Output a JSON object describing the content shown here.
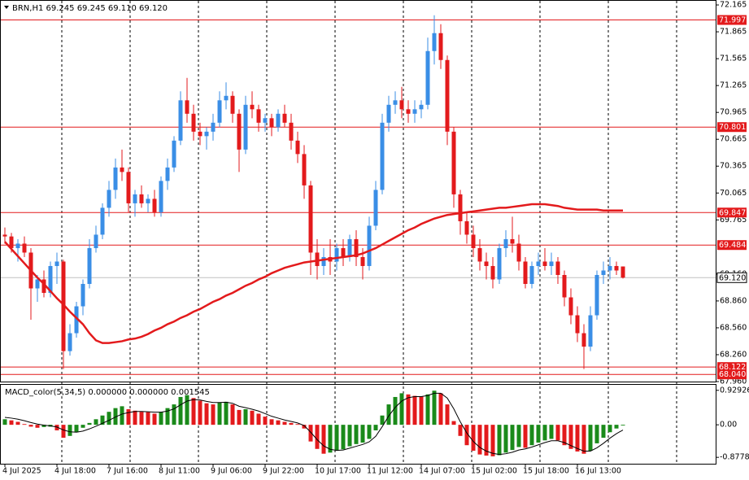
{
  "chart_data": {
    "type": "candlestick",
    "title": "BRN,H1  69.245 69.245 69.110 69.120",
    "categories": [
      "4 Jul 2025",
      null,
      null,
      null,
      null,
      null,
      null,
      null,
      "4 Jul 18:00",
      null,
      null,
      null,
      null,
      null,
      null,
      null,
      "7 Jul 16:00",
      null,
      null,
      null,
      null,
      null,
      null,
      null,
      "8 Jul 11:00",
      null,
      null,
      null,
      null,
      null,
      null,
      null,
      "9 Jul 06:00",
      null,
      null,
      null,
      null,
      null,
      null,
      null,
      "9 Jul 22:00",
      null,
      null,
      null,
      null,
      null,
      null,
      null,
      "10 Jul 17:00",
      null,
      null,
      null,
      null,
      null,
      null,
      null,
      "11 Jul 12:00",
      null,
      null,
      null,
      null,
      null,
      null,
      null,
      "14 Jul 07:00",
      null,
      null,
      null,
      null,
      null,
      null,
      null,
      "15 Jul 02:00",
      null,
      null,
      null,
      null,
      null,
      null,
      null,
      "15 Jul 18:00",
      null,
      null,
      null,
      null,
      null,
      null,
      null,
      "16 Jul 13:00",
      null,
      null,
      null,
      null,
      null,
      null,
      null
    ],
    "candles": [
      [
        69.6,
        69.68,
        69.5,
        69.58
      ],
      [
        69.58,
        69.62,
        69.4,
        69.45
      ],
      [
        69.45,
        69.55,
        69.3,
        69.5
      ],
      [
        69.5,
        69.58,
        69.35,
        69.4
      ],
      [
        69.4,
        69.45,
        68.65,
        69.0
      ],
      [
        69.0,
        69.15,
        68.85,
        69.1
      ],
      [
        69.1,
        69.2,
        68.9,
        68.95
      ],
      [
        68.95,
        69.3,
        68.9,
        69.25
      ],
      [
        69.25,
        69.4,
        69.05,
        69.3
      ],
      [
        69.3,
        69.32,
        68.1,
        68.3
      ],
      [
        68.3,
        68.6,
        68.25,
        68.5
      ],
      [
        68.5,
        68.85,
        68.45,
        68.8
      ],
      [
        68.8,
        69.1,
        68.7,
        69.05
      ],
      [
        69.05,
        69.55,
        69.0,
        69.45
      ],
      [
        69.45,
        69.7,
        69.4,
        69.6
      ],
      [
        69.6,
        69.95,
        69.55,
        69.9
      ],
      [
        69.9,
        70.2,
        69.8,
        70.1
      ],
      [
        70.1,
        70.45,
        70.0,
        70.35
      ],
      [
        70.35,
        70.55,
        70.2,
        70.3
      ],
      [
        70.3,
        70.35,
        69.85,
        69.95
      ],
      [
        69.95,
        70.1,
        69.8,
        70.05
      ],
      [
        70.05,
        70.15,
        69.9,
        69.95
      ],
      [
        69.95,
        70.05,
        69.85,
        70.0
      ],
      [
        70.0,
        70.1,
        69.8,
        69.85
      ],
      [
        69.85,
        70.25,
        69.8,
        70.2
      ],
      [
        70.2,
        70.45,
        70.1,
        70.35
      ],
      [
        70.35,
        70.7,
        70.3,
        70.65
      ],
      [
        70.65,
        71.2,
        70.6,
        71.1
      ],
      [
        71.1,
        71.35,
        70.85,
        70.95
      ],
      [
        70.95,
        71.05,
        70.65,
        70.75
      ],
      [
        70.75,
        70.85,
        70.6,
        70.7
      ],
      [
        70.7,
        70.8,
        70.55,
        70.75
      ],
      [
        70.75,
        70.95,
        70.65,
        70.85
      ],
      [
        70.85,
        71.2,
        70.8,
        71.1
      ],
      [
        71.1,
        71.3,
        71.0,
        71.15
      ],
      [
        71.15,
        71.2,
        70.85,
        70.95
      ],
      [
        70.95,
        71.0,
        70.3,
        70.55
      ],
      [
        70.55,
        71.15,
        70.5,
        71.05
      ],
      [
        71.05,
        71.2,
        70.9,
        71.0
      ],
      [
        71.0,
        71.05,
        70.75,
        70.85
      ],
      [
        70.85,
        70.95,
        70.75,
        70.9
      ],
      [
        70.9,
        70.95,
        70.7,
        70.8
      ],
      [
        70.8,
        71.0,
        70.75,
        70.95
      ],
      [
        70.95,
        71.05,
        70.8,
        70.85
      ],
      [
        70.85,
        70.95,
        70.55,
        70.65
      ],
      [
        70.65,
        70.75,
        70.4,
        70.5
      ],
      [
        70.5,
        70.6,
        70.0,
        70.15
      ],
      [
        70.15,
        70.2,
        69.15,
        69.4
      ],
      [
        69.4,
        69.55,
        69.1,
        69.25
      ],
      [
        69.25,
        69.45,
        69.15,
        69.35
      ],
      [
        69.35,
        69.55,
        69.15,
        69.3
      ],
      [
        69.3,
        69.5,
        69.2,
        69.45
      ],
      [
        69.45,
        69.55,
        69.25,
        69.35
      ],
      [
        69.35,
        69.6,
        69.3,
        69.55
      ],
      [
        69.55,
        69.65,
        69.25,
        69.35
      ],
      [
        69.35,
        69.45,
        69.1,
        69.25
      ],
      [
        69.25,
        69.8,
        69.2,
        69.7
      ],
      [
        69.7,
        70.2,
        69.65,
        70.1
      ],
      [
        70.1,
        70.95,
        70.05,
        70.85
      ],
      [
        70.85,
        71.15,
        70.75,
        71.05
      ],
      [
        71.05,
        71.2,
        70.95,
        71.1
      ],
      [
        71.1,
        71.25,
        70.9,
        71.0
      ],
      [
        71.0,
        71.1,
        70.85,
        70.95
      ],
      [
        70.95,
        71.1,
        70.85,
        71.0
      ],
      [
        71.0,
        71.1,
        70.9,
        71.05
      ],
      [
        71.05,
        71.8,
        71.0,
        71.65
      ],
      [
        71.65,
        72.05,
        71.5,
        71.85
      ],
      [
        71.85,
        71.95,
        71.45,
        71.55
      ],
      [
        71.55,
        71.6,
        70.6,
        70.75
      ],
      [
        70.75,
        70.8,
        69.9,
        70.05
      ],
      [
        70.05,
        70.1,
        69.6,
        69.75
      ],
      [
        69.75,
        69.85,
        69.5,
        69.6
      ],
      [
        69.6,
        69.7,
        69.35,
        69.45
      ],
      [
        69.45,
        69.55,
        69.2,
        69.3
      ],
      [
        69.3,
        69.4,
        69.1,
        69.25
      ],
      [
        69.25,
        69.35,
        69.0,
        69.1
      ],
      [
        69.1,
        69.5,
        69.05,
        69.45
      ],
      [
        69.45,
        69.65,
        69.35,
        69.55
      ],
      [
        69.55,
        69.8,
        69.4,
        69.5
      ],
      [
        69.5,
        69.6,
        69.2,
        69.3
      ],
      [
        69.3,
        69.35,
        69.0,
        69.05
      ],
      [
        69.05,
        69.3,
        69.0,
        69.25
      ],
      [
        69.25,
        69.4,
        69.15,
        69.3
      ],
      [
        69.3,
        69.45,
        69.2,
        69.25
      ],
      [
        69.25,
        69.4,
        69.15,
        69.3
      ],
      [
        69.3,
        69.35,
        69.05,
        69.15
      ],
      [
        69.15,
        69.2,
        68.8,
        68.9
      ],
      [
        68.9,
        69.0,
        68.6,
        68.7
      ],
      [
        68.7,
        68.8,
        68.4,
        68.5
      ],
      [
        68.5,
        68.6,
        68.1,
        68.35
      ],
      [
        68.35,
        68.8,
        68.3,
        68.7
      ],
      [
        68.7,
        69.2,
        68.65,
        69.15
      ],
      [
        69.15,
        69.3,
        69.05,
        69.2
      ],
      [
        69.2,
        69.35,
        69.1,
        69.25
      ],
      [
        69.25,
        69.3,
        69.15,
        69.2
      ],
      [
        69.245,
        69.245,
        69.11,
        69.12
      ]
    ],
    "ma_values": [
      69.52,
      69.44,
      69.36,
      69.28,
      69.2,
      69.12,
      69.05,
      68.97,
      68.89,
      68.82,
      68.74,
      68.67,
      68.6,
      68.5,
      68.42,
      68.39,
      68.39,
      68.4,
      68.41,
      68.43,
      68.44,
      68.46,
      68.49,
      68.53,
      68.56,
      68.6,
      68.63,
      68.67,
      68.7,
      68.74,
      68.77,
      68.81,
      68.85,
      68.88,
      68.92,
      68.95,
      68.99,
      69.03,
      69.06,
      69.1,
      69.13,
      69.17,
      69.2,
      69.23,
      69.25,
      69.27,
      69.29,
      69.3,
      69.31,
      69.32,
      69.33,
      69.34,
      69.35,
      69.36,
      69.37,
      69.39,
      69.42,
      69.45,
      69.49,
      69.53,
      69.57,
      69.61,
      69.65,
      69.68,
      69.72,
      69.75,
      69.78,
      69.8,
      69.82,
      69.83,
      69.84,
      69.85,
      69.86,
      69.87,
      69.88,
      69.89,
      69.9,
      69.9,
      69.91,
      69.92,
      69.93,
      69.94,
      69.94,
      69.94,
      69.93,
      69.92,
      69.9,
      69.89,
      69.88,
      69.88,
      69.88,
      69.88,
      69.87,
      69.87,
      69.87,
      69.87
    ],
    "ma_color": "#e31a1c",
    "up_color": "#3a8ee6",
    "down_color": "#e31a1c",
    "ylim": [
      67.96,
      72.22
    ],
    "yticks": [
      72.165,
      71.865,
      71.565,
      71.265,
      70.965,
      70.665,
      70.365,
      70.065,
      69.765,
      {
        "value": 69.16,
        "label": "69.160"
      },
      {
        "value": 68.86,
        "label": "68.860"
      },
      {
        "value": 68.56,
        "label": "68.560"
      },
      {
        "value": 68.26,
        "label": "68.260"
      },
      {
        "value": 67.96,
        "label": "67.960"
      }
    ],
    "levels": [
      71.997,
      70.801,
      69.847,
      69.484,
      68.122,
      {
        "value": 68.04,
        "label": "68.040"
      }
    ],
    "level_color": "#e31a1c",
    "current": {
      "value": 69.12,
      "label": "69.120"
    },
    "macd": {
      "title": "MACD_color(5,34,5) 0.000000 0.000000 0.001545",
      "values": [
        0.15,
        0.12,
        0.08,
        0.02,
        -0.05,
        -0.08,
        -0.06,
        -0.05,
        -0.15,
        -0.35,
        -0.3,
        -0.2,
        -0.08,
        0.05,
        0.15,
        0.25,
        0.35,
        0.45,
        0.5,
        0.42,
        0.38,
        0.35,
        0.34,
        0.3,
        0.35,
        0.45,
        0.55,
        0.75,
        0.8,
        0.72,
        0.65,
        0.58,
        0.55,
        0.6,
        0.62,
        0.55,
        0.4,
        0.42,
        0.38,
        0.3,
        0.22,
        0.15,
        0.12,
        0.08,
        0.05,
        0.02,
        -0.1,
        -0.45,
        -0.65,
        -0.78,
        -0.75,
        -0.7,
        -0.66,
        -0.58,
        -0.52,
        -0.48,
        -0.38,
        -0.15,
        0.25,
        0.55,
        0.75,
        0.85,
        0.82,
        0.78,
        0.76,
        0.82,
        0.92,
        0.85,
        0.55,
        0.1,
        -0.3,
        -0.55,
        -0.7,
        -0.8,
        -0.83,
        -0.85,
        -0.82,
        -0.75,
        -0.68,
        -0.6,
        -0.62,
        -0.55,
        -0.48,
        -0.42,
        -0.38,
        -0.42,
        -0.55,
        -0.65,
        -0.72,
        -0.78,
        -0.7,
        -0.5,
        -0.35,
        -0.2,
        -0.1,
        -0.02
      ],
      "signal": [
        0.2,
        0.18,
        0.15,
        0.11,
        0.06,
        0.02,
        -0.01,
        -0.03,
        -0.06,
        -0.14,
        -0.19,
        -0.2,
        -0.17,
        -0.11,
        -0.04,
        0.04,
        0.12,
        0.21,
        0.29,
        0.33,
        0.36,
        0.36,
        0.35,
        0.34,
        0.34,
        0.37,
        0.43,
        0.54,
        0.64,
        0.68,
        0.67,
        0.63,
        0.6,
        0.6,
        0.61,
        0.58,
        0.5,
        0.46,
        0.42,
        0.37,
        0.3,
        0.23,
        0.18,
        0.13,
        0.09,
        0.05,
        -0.02,
        -0.2,
        -0.4,
        -0.57,
        -0.66,
        -0.69,
        -0.68,
        -0.63,
        -0.58,
        -0.53,
        -0.46,
        -0.31,
        -0.05,
        0.24,
        0.47,
        0.64,
        0.73,
        0.76,
        0.76,
        0.79,
        0.85,
        0.85,
        0.72,
        0.43,
        0.08,
        -0.22,
        -0.45,
        -0.61,
        -0.71,
        -0.77,
        -0.8,
        -0.78,
        -0.74,
        -0.68,
        -0.65,
        -0.6,
        -0.54,
        -0.48,
        -0.43,
        -0.43,
        -0.48,
        -0.56,
        -0.64,
        -0.71,
        -0.71,
        -0.62,
        -0.5,
        -0.36,
        -0.24,
        -0.14
      ],
      "ylim": [
        -1.05,
        1.1
      ],
      "yticks": [
        0.929263,
        {
          "value": 0,
          "label": "0.00"
        },
        -0.877843
      ],
      "up_color": "#1a8a1a",
      "down_color": "#e31a1c",
      "signal_color": "#000000"
    }
  }
}
